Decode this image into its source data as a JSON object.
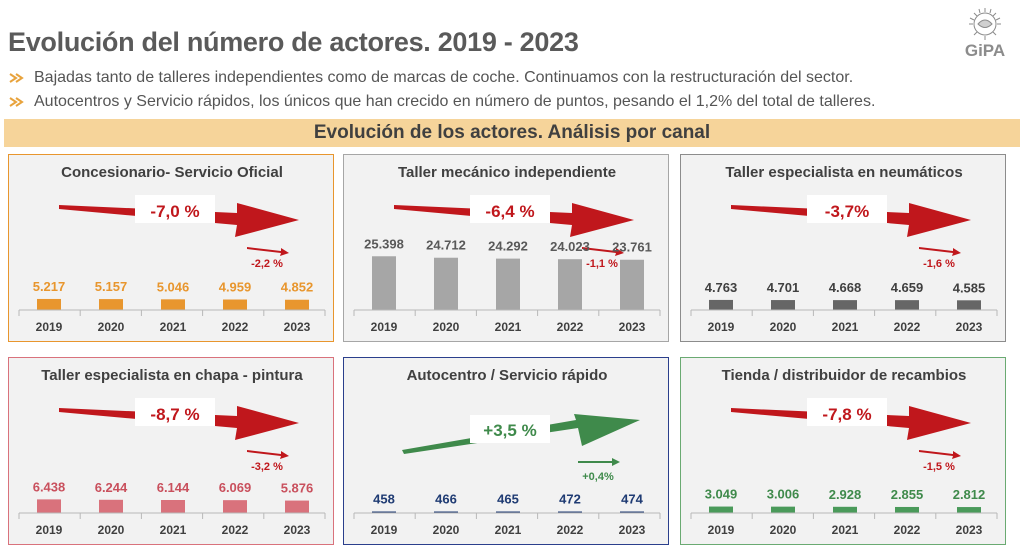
{
  "header": {
    "title": "Evolución del número de actores. 2019 - 2023",
    "logo_text": "GiPA"
  },
  "bullets": [
    "Bajadas tanto de talleres independientes como de marcas de coche. Continuamos con la restructuración del sector.",
    "Autocentros y Servicio rápidos, los únicos que han crecido en número de puntos, pesando el 1,2% del total de talleres."
  ],
  "section_title": "Evolución de los actores. Análisis por canal",
  "colors": {
    "bullet_arrow": "#e8a33d",
    "band": "#f6d49a",
    "down_arrow": "#c0171c",
    "up_arrow": "#3f8a4b"
  },
  "chart_data": [
    {
      "type": "bar",
      "title": "Concesionario- Servicio Oficial",
      "categories": [
        "2019",
        "2020",
        "2021",
        "2022",
        "2023"
      ],
      "values": [
        5217,
        5157,
        5046,
        4959,
        4852
      ],
      "value_labels": [
        "5.217",
        "5.157",
        "5.046",
        "4.959",
        "4.852"
      ],
      "total_change": "-7,0 %",
      "last_year_change": "-2,2 %",
      "trend": "down",
      "bar_color": "#e8962e",
      "label_color": "#e8962e",
      "border_color": "#e8962e",
      "ylim": [
        0,
        26000
      ]
    },
    {
      "type": "bar",
      "title": "Taller mecánico independiente",
      "categories": [
        "2019",
        "2020",
        "2021",
        "2022",
        "2023"
      ],
      "values": [
        25398,
        24712,
        24292,
        24023,
        23761
      ],
      "value_labels": [
        "25.398",
        "24.712",
        "24.292",
        "24.023",
        "23.761"
      ],
      "total_change": "-6,4 %",
      "last_year_change": "-1,1 %",
      "trend": "down",
      "bar_color": "#a6a6a6",
      "label_color": "#595959",
      "border_color": "#a6a6a6",
      "ylim": [
        0,
        26000
      ]
    },
    {
      "type": "bar",
      "title": "Taller especialista en neumáticos",
      "categories": [
        "2019",
        "2020",
        "2021",
        "2022",
        "2023"
      ],
      "values": [
        4763,
        4701,
        4668,
        4659,
        4585
      ],
      "value_labels": [
        "4.763",
        "4.701",
        "4.668",
        "4.659",
        "4.585"
      ],
      "total_change": "-3,7%",
      "last_year_change": "-1,6 %",
      "trend": "down",
      "bar_color": "#666666",
      "label_color": "#404040",
      "border_color": "#8c8c8c",
      "ylim": [
        0,
        26000
      ]
    },
    {
      "type": "bar",
      "title": "Taller especialista en chapa - pintura",
      "categories": [
        "2019",
        "2020",
        "2021",
        "2022",
        "2023"
      ],
      "values": [
        6438,
        6244,
        6144,
        6069,
        5876
      ],
      "value_labels": [
        "6.438",
        "6.244",
        "6.144",
        "6.069",
        "5.876"
      ],
      "total_change": "-8,7 %",
      "last_year_change": "-3,2 %",
      "trend": "down",
      "bar_color": "#d9727c",
      "label_color": "#c9505d",
      "border_color": "#d9727c",
      "ylim": [
        0,
        26000
      ]
    },
    {
      "type": "bar",
      "title": "Autocentro / Servicio rápido",
      "categories": [
        "2019",
        "2020",
        "2021",
        "2022",
        "2023"
      ],
      "values": [
        458,
        466,
        465,
        472,
        474
      ],
      "value_labels": [
        "458",
        "466",
        "465",
        "472",
        "474"
      ],
      "total_change": "+3,5 %",
      "last_year_change": "+0,4%",
      "trend": "up",
      "bar_color": "#1f3b73",
      "label_color": "#1f3b73",
      "border_color": "#2b3f8c",
      "ylim": [
        0,
        26000
      ]
    },
    {
      "type": "bar",
      "title": "Tienda / distribuidor de recambios",
      "categories": [
        "2019",
        "2020",
        "2021",
        "2022",
        "2023"
      ],
      "values": [
        3049,
        3006,
        2928,
        2855,
        2812
      ],
      "value_labels": [
        "3.049",
        "3.006",
        "2.928",
        "2.855",
        "2.812"
      ],
      "total_change": "-7,8 %",
      "last_year_change": "-1,5 %",
      "trend": "down",
      "bar_color": "#4a9a5a",
      "label_color": "#3f8a4b",
      "border_color": "#6aaa72",
      "ylim": [
        0,
        26000
      ]
    }
  ]
}
